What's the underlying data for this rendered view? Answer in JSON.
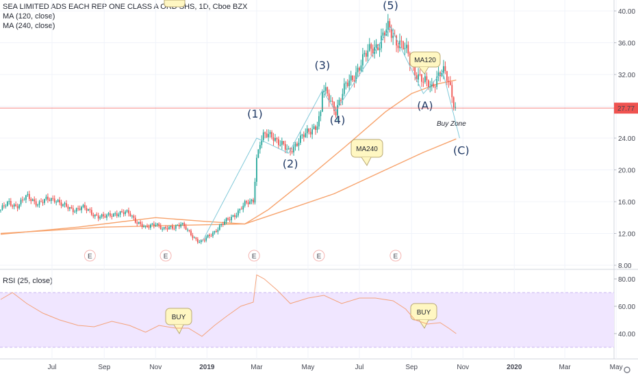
{
  "header": {
    "symbol_line": "SEA LIMITED ADS EACH REP ONE CLASS A ORD SHS, 1D, Cboe BZX",
    "ma1_label": "MA (120, close)",
    "ma2_label": "MA (240, close)",
    "rsi_label": "RSI (25, close)"
  },
  "colors": {
    "candle_up": "#26a69a",
    "candle_down": "#ef5350",
    "ma": "#f7a26b",
    "rsi_line": "#f4a27a",
    "rsi_band": "#f0e6ff",
    "wave_line": "#7fc8d8",
    "price_tag": "#ef5350",
    "note_bg": "#fff7c2",
    "earnings": "#ef5350",
    "buy_zone_text": "#26a69a"
  },
  "chart_data": [
    {
      "type": "candlestick",
      "title": "SEA LIMITED ADS EACH REP ONE CLASS A ORD SHS, 1D, Cboe BZX",
      "x_ticks": [
        "Jul",
        "Sep",
        "Nov",
        "2019",
        "Mar",
        "May",
        "Jul",
        "Sep",
        "Nov",
        "2020",
        "Mar",
        "May"
      ],
      "y_ticks": [
        "8.00",
        "12.00",
        "16.00",
        "20.00",
        "24.00",
        "28.00",
        "32.00",
        "36.00",
        "40.00"
      ],
      "ylim": [
        8,
        40
      ],
      "last_price": "27.77",
      "close_path": [
        [
          "2018-05-01",
          15.0
        ],
        [
          "2018-05-10",
          15.8
        ],
        [
          "2018-05-20",
          15.5
        ],
        [
          "2018-06-01",
          16.6
        ],
        [
          "2018-06-15",
          15.8
        ],
        [
          "2018-06-25",
          16.2
        ],
        [
          "2018-07-05",
          16.4
        ],
        [
          "2018-07-15",
          15.4
        ],
        [
          "2018-07-25",
          15.0
        ],
        [
          "2018-08-05",
          15.3
        ],
        [
          "2018-08-20",
          14.4
        ],
        [
          "2018-09-01",
          14.0
        ],
        [
          "2018-09-15",
          14.6
        ],
        [
          "2018-10-01",
          14.5
        ],
        [
          "2018-10-10",
          13.5
        ],
        [
          "2018-10-20",
          12.6
        ],
        [
          "2018-11-01",
          13.4
        ],
        [
          "2018-11-10",
          12.4
        ],
        [
          "2018-11-20",
          12.8
        ],
        [
          "2018-12-01",
          13.2
        ],
        [
          "2018-12-10",
          12.2
        ],
        [
          "2018-12-20",
          11.2
        ],
        [
          "2018-12-26",
          10.9
        ],
        [
          "2019-01-05",
          11.8
        ],
        [
          "2019-01-15",
          12.8
        ],
        [
          "2019-01-25",
          13.6
        ],
        [
          "2019-02-05",
          14.6
        ],
        [
          "2019-02-15",
          15.6
        ],
        [
          "2019-02-25",
          16.2
        ],
        [
          "2019-02-27",
          19.0
        ],
        [
          "2019-03-01",
          21.5
        ],
        [
          "2019-03-05",
          23.5
        ],
        [
          "2019-03-10",
          24.2
        ],
        [
          "2019-03-20",
          24.4
        ],
        [
          "2019-04-01",
          23.0
        ],
        [
          "2019-04-08",
          22.2
        ],
        [
          "2019-04-20",
          23.8
        ],
        [
          "2019-05-01",
          24.6
        ],
        [
          "2019-05-10",
          25.6
        ],
        [
          "2019-05-16",
          27.0
        ],
        [
          "2019-05-18",
          30.0
        ],
        [
          "2019-05-25",
          29.2
        ],
        [
          "2019-06-03",
          27.6
        ],
        [
          "2019-06-15",
          30.5
        ],
        [
          "2019-07-01",
          33.0
        ],
        [
          "2019-07-15",
          35.5
        ],
        [
          "2019-07-25",
          35.8
        ],
        [
          "2019-08-05",
          38.0
        ],
        [
          "2019-08-15",
          36.2
        ],
        [
          "2019-08-25",
          35.0
        ],
        [
          "2019-09-05",
          32.5
        ],
        [
          "2019-09-15",
          31.0
        ],
        [
          "2019-09-25",
          30.5
        ],
        [
          "2019-10-01",
          31.8
        ],
        [
          "2019-10-08",
          32.4
        ],
        [
          "2019-10-15",
          31.0
        ],
        [
          "2019-10-20",
          29.0
        ],
        [
          "2019-10-24",
          27.8
        ]
      ],
      "ma120": [
        [
          "2018-05-01",
          11.9
        ],
        [
          "2018-08-01",
          12.8
        ],
        [
          "2018-11-01",
          14.0
        ],
        [
          "2019-01-01",
          13.5
        ],
        [
          "2019-02-15",
          13.2
        ],
        [
          "2019-03-15",
          15.0
        ],
        [
          "2019-05-01",
          19.0
        ],
        [
          "2019-06-15",
          23.0
        ],
        [
          "2019-08-01",
          27.3
        ],
        [
          "2019-09-01",
          29.6
        ],
        [
          "2019-10-01",
          30.8
        ],
        [
          "2019-10-24",
          31.3
        ]
      ],
      "ma240": [
        [
          "2018-05-01",
          12.0
        ],
        [
          "2018-09-01",
          12.8
        ],
        [
          "2019-01-01",
          13.1
        ],
        [
          "2019-02-15",
          13.2
        ],
        [
          "2019-04-01",
          14.8
        ],
        [
          "2019-06-01",
          17.0
        ],
        [
          "2019-08-01",
          20.0
        ],
        [
          "2019-09-15",
          22.2
        ],
        [
          "2019-10-24",
          23.9
        ]
      ],
      "wave_path": [
        [
          "2018-12-26",
          10.9
        ],
        [
          "2019-03-01",
          24.0
        ],
        [
          "2019-04-08",
          22.1
        ],
        [
          "2019-05-18",
          30.0
        ],
        [
          "2019-06-03",
          27.4
        ],
        [
          "2019-08-07",
          38.0
        ],
        [
          "2019-09-15",
          29.6
        ],
        [
          "2019-10-08",
          32.4
        ],
        [
          "2019-10-28",
          24.0
        ]
      ],
      "wave_labels": [
        "(1)",
        "(2)",
        "(3)",
        "(4)",
        "(5)",
        "(A)",
        "(C)"
      ],
      "annotations": {
        "buy_zone": "Buy Zone",
        "ma120_note": "MA120",
        "ma240_note": "MA240",
        "earnings": [
          "E",
          "E",
          "E",
          "E",
          "E"
        ]
      }
    },
    {
      "type": "line",
      "title": "RSI (25, close)",
      "y_ticks": [
        "40.00",
        "60.00",
        "80.00"
      ],
      "band": [
        30,
        70
      ],
      "series": [
        {
          "values": [
            [
              "2018-05-01",
              65
            ],
            [
              "2018-05-15",
              70
            ],
            [
              "2018-06-01",
              62
            ],
            [
              "2018-06-20",
              55
            ],
            [
              "2018-07-10",
              50
            ],
            [
              "2018-08-01",
              46
            ],
            [
              "2018-08-20",
              45
            ],
            [
              "2018-09-10",
              49
            ],
            [
              "2018-10-01",
              46
            ],
            [
              "2018-10-20",
              41
            ],
            [
              "2018-11-05",
              46
            ],
            [
              "2018-11-25",
              44
            ],
            [
              "2018-12-10",
              44
            ],
            [
              "2018-12-26",
              38
            ],
            [
              "2019-01-10",
              46
            ],
            [
              "2019-01-25",
              53
            ],
            [
              "2019-02-10",
              60
            ],
            [
              "2019-02-25",
              63
            ],
            [
              "2019-03-01",
              83
            ],
            [
              "2019-03-10",
              80
            ],
            [
              "2019-03-25",
              72
            ],
            [
              "2019-04-10",
              62
            ],
            [
              "2019-05-01",
              66
            ],
            [
              "2019-05-20",
              68
            ],
            [
              "2019-06-10",
              62
            ],
            [
              "2019-07-01",
              66
            ],
            [
              "2019-07-20",
              66
            ],
            [
              "2019-08-10",
              64
            ],
            [
              "2019-08-25",
              58
            ],
            [
              "2019-09-05",
              50
            ],
            [
              "2019-09-20",
              47
            ],
            [
              "2019-10-05",
              48
            ],
            [
              "2019-10-15",
              44
            ],
            [
              "2019-10-24",
              40
            ]
          ]
        }
      ],
      "notes": [
        "BUY",
        "BUY"
      ]
    }
  ]
}
